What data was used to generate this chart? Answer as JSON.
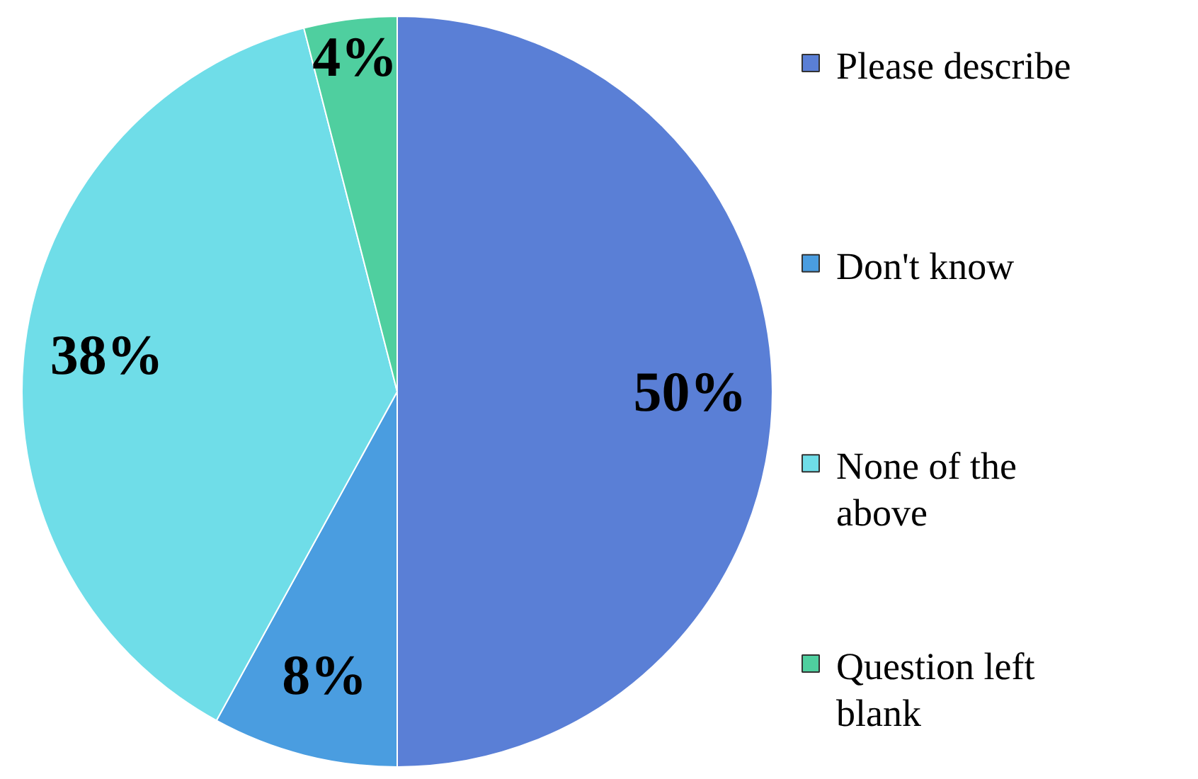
{
  "chart_data": {
    "type": "pie",
    "categories": [
      "Please describe",
      "Don't know",
      "None of the above",
      "Question left blank"
    ],
    "values": [
      50,
      8,
      38,
      4
    ],
    "colors": [
      "#5a7fd6",
      "#4a9de0",
      "#6fdde8",
      "#4fcf9f"
    ],
    "value_labels": [
      "50%",
      "8%",
      "38%",
      "4%"
    ],
    "legend": "right"
  }
}
